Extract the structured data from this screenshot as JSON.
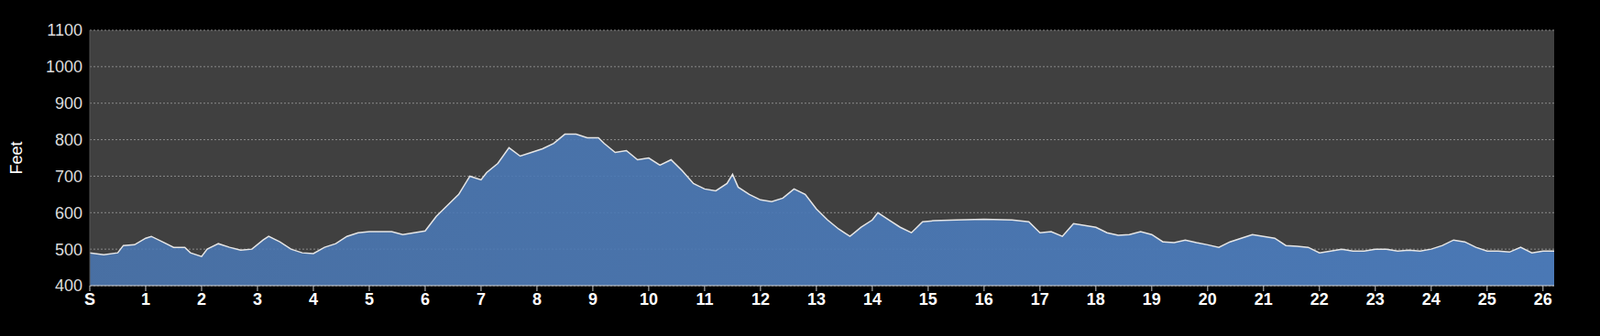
{
  "chart_data": {
    "type": "area",
    "ylabel": "Feet",
    "color": "#4a78b5",
    "grid": true,
    "xlim": [
      0,
      26.2
    ],
    "ylim": [
      400,
      1100
    ],
    "xticks": [
      {
        "value": 0,
        "label": "S"
      },
      1,
      2,
      3,
      4,
      5,
      6,
      7,
      8,
      9,
      10,
      11,
      12,
      13,
      14,
      15,
      16,
      17,
      18,
      19,
      20,
      21,
      22,
      23,
      24,
      25,
      26
    ],
    "yticks": [
      400,
      500,
      600,
      700,
      800,
      900,
      1000,
      1100
    ],
    "x": [
      0,
      0.25,
      0.5,
      0.6,
      0.8,
      1.0,
      1.1,
      1.3,
      1.5,
      1.7,
      1.8,
      2.0,
      2.1,
      2.3,
      2.5,
      2.7,
      2.9,
      3.1,
      3.2,
      3.4,
      3.6,
      3.8,
      4.0,
      4.2,
      4.4,
      4.6,
      4.8,
      5.0,
      5.4,
      5.6,
      5.8,
      6.0,
      6.2,
      6.4,
      6.6,
      6.8,
      7.0,
      7.1,
      7.3,
      7.5,
      7.7,
      7.9,
      8.1,
      8.3,
      8.5,
      8.7,
      8.9,
      9.1,
      9.2,
      9.4,
      9.6,
      9.8,
      10.0,
      10.2,
      10.4,
      10.6,
      10.8,
      11.0,
      11.2,
      11.4,
      11.5,
      11.6,
      11.8,
      12.0,
      12.2,
      12.4,
      12.6,
      12.8,
      13.0,
      13.2,
      13.4,
      13.6,
      13.8,
      14.0,
      14.1,
      14.3,
      14.5,
      14.7,
      14.9,
      15.1,
      15.5,
      16.0,
      16.5,
      16.8,
      17.0,
      17.2,
      17.4,
      17.6,
      17.8,
      18.0,
      18.2,
      18.4,
      18.6,
      18.8,
      19.0,
      19.2,
      19.4,
      19.6,
      19.8,
      20.0,
      20.2,
      20.4,
      20.6,
      20.8,
      21.0,
      21.2,
      21.4,
      21.6,
      21.8,
      22.0,
      22.2,
      22.4,
      22.6,
      22.8,
      23.0,
      23.2,
      23.4,
      23.6,
      23.8,
      24.0,
      24.2,
      24.4,
      24.6,
      24.8,
      25.0,
      25.2,
      25.4,
      25.6,
      25.8,
      26.0,
      26.2
    ],
    "values": [
      490,
      485,
      490,
      510,
      512,
      530,
      535,
      520,
      505,
      505,
      490,
      480,
      500,
      515,
      505,
      497,
      500,
      525,
      535,
      520,
      500,
      490,
      488,
      505,
      515,
      535,
      545,
      548,
      548,
      540,
      545,
      550,
      590,
      620,
      650,
      700,
      690,
      710,
      735,
      778,
      755,
      765,
      775,
      790,
      815,
      815,
      805,
      805,
      790,
      765,
      770,
      745,
      750,
      730,
      745,
      715,
      680,
      665,
      660,
      680,
      705,
      670,
      650,
      635,
      630,
      640,
      665,
      650,
      610,
      580,
      555,
      535,
      560,
      580,
      600,
      580,
      560,
      545,
      575,
      578,
      580,
      582,
      580,
      575,
      545,
      548,
      535,
      570,
      565,
      560,
      545,
      538,
      540,
      548,
      540,
      520,
      518,
      525,
      518,
      512,
      505,
      520,
      530,
      540,
      535,
      530,
      510,
      508,
      505,
      490,
      495,
      500,
      495,
      495,
      500,
      500,
      495,
      497,
      495,
      500,
      510,
      525,
      520,
      505,
      495,
      495,
      492,
      505,
      490,
      495,
      495
    ]
  }
}
